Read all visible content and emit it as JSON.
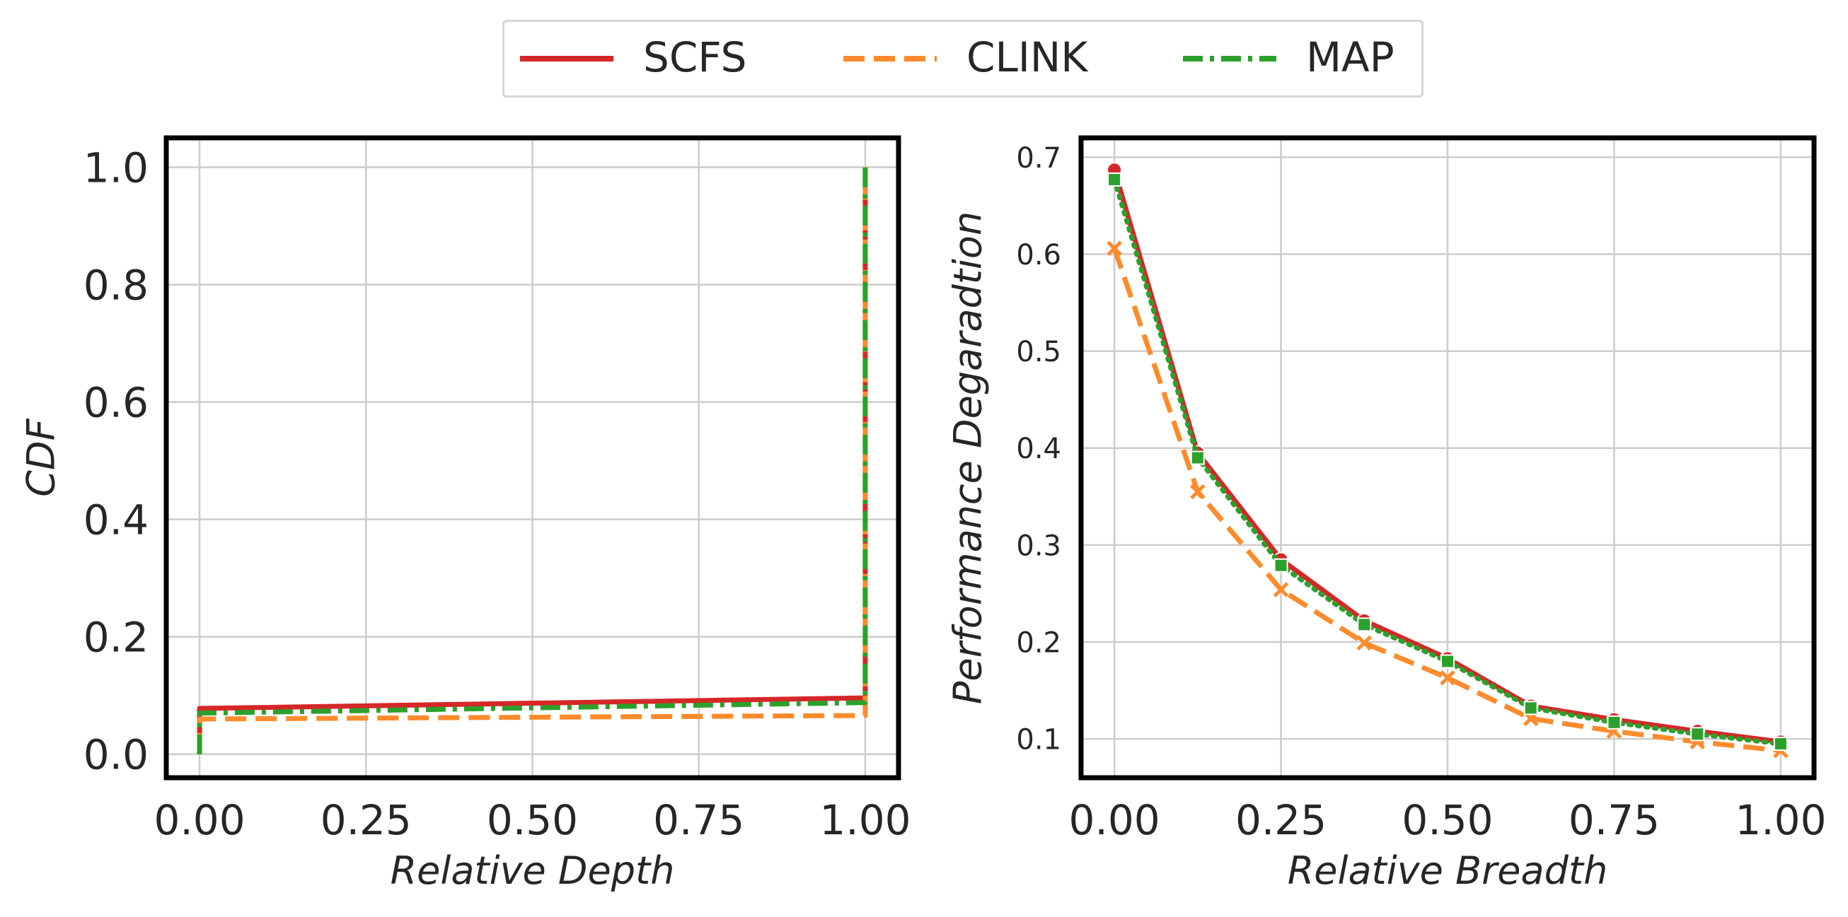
{
  "legend": {
    "items": [
      {
        "label": "SCFS",
        "color": "#d62728",
        "style": "solid"
      },
      {
        "label": "CLINK",
        "color": "#ff8b2c",
        "style": "dashed"
      },
      {
        "label": "MAP",
        "color": "#2ca02c",
        "style": "dashdot"
      }
    ]
  },
  "chart_data": [
    {
      "type": "line",
      "subtype": "cdf",
      "xlabel": "Relative Depth",
      "ylabel": "CDF",
      "xlim": [
        -0.05,
        1.05
      ],
      "ylim": [
        -0.04,
        1.05
      ],
      "xticks": [
        "0.00",
        "0.25",
        "0.50",
        "0.75",
        "1.00"
      ],
      "yticks": [
        "0.0",
        "0.2",
        "0.4",
        "0.6",
        "0.8",
        "1.0"
      ],
      "grid": true,
      "series": [
        {
          "name": "SCFS",
          "color": "#d62728",
          "style": "solid",
          "x": [
            0.0,
            0.0,
            0.67,
            1.0,
            1.0
          ],
          "y": [
            0.0,
            0.078,
            0.09,
            0.096,
            1.0
          ]
        },
        {
          "name": "CLINK",
          "color": "#ff8b2c",
          "style": "dashed",
          "x": [
            0.0,
            0.0,
            1.0,
            1.0
          ],
          "y": [
            0.0,
            0.06,
            0.066,
            1.0
          ]
        },
        {
          "name": "MAP",
          "color": "#2ca02c",
          "style": "dashdot",
          "x": [
            0.0,
            0.0,
            1.0,
            1.0
          ],
          "y": [
            0.0,
            0.07,
            0.088,
            1.0
          ]
        }
      ]
    },
    {
      "type": "line",
      "xlabel": "Relative Breadth",
      "ylabel": "Performance Degaradtion",
      "xlim": [
        -0.05,
        1.05
      ],
      "ylim": [
        0.06,
        0.72
      ],
      "xticks": [
        "0.00",
        "0.25",
        "0.50",
        "0.75",
        "1.00"
      ],
      "yticks": [
        "0.1",
        "0.2",
        "0.3",
        "0.4",
        "0.5",
        "0.6",
        "0.7"
      ],
      "grid": true,
      "x": [
        0.0,
        0.125,
        0.25,
        0.375,
        0.5,
        0.625,
        0.75,
        0.875,
        1.0
      ],
      "series": [
        {
          "name": "SCFS",
          "color": "#d62728",
          "style": "solid",
          "marker": "circle",
          "values": [
            0.687,
            0.395,
            0.285,
            0.222,
            0.183,
            0.134,
            0.12,
            0.108,
            0.097
          ]
        },
        {
          "name": "CLINK",
          "color": "#ff8b2c",
          "style": "dashed",
          "marker": "x",
          "values": [
            0.606,
            0.355,
            0.254,
            0.199,
            0.163,
            0.121,
            0.108,
            0.097,
            0.088
          ]
        },
        {
          "name": "MAP",
          "color": "#2ca02c",
          "style": "dotted",
          "marker": "square",
          "values": [
            0.677,
            0.39,
            0.279,
            0.218,
            0.18,
            0.132,
            0.117,
            0.105,
            0.095
          ]
        }
      ]
    }
  ]
}
